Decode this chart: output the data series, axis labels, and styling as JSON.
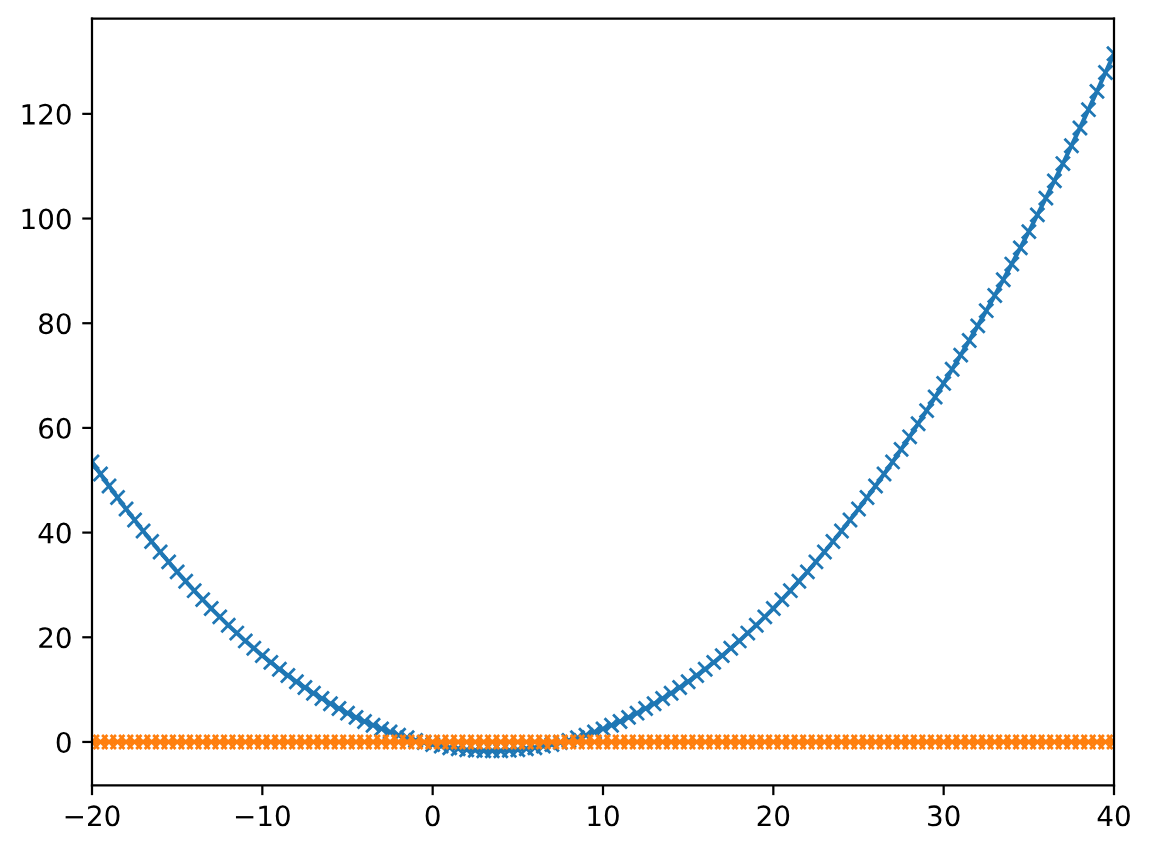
{
  "chart_data": {
    "type": "line",
    "series": [
      {
        "color": "#1f77b4",
        "x": [
          -20,
          -19.5,
          -19,
          -18.5,
          -18,
          -17.5,
          -17,
          -16.5,
          -16,
          -15.5,
          -15,
          -14.5,
          -14,
          -13.5,
          -13,
          -12.5,
          -12,
          -11.5,
          -11,
          -10.5,
          -10,
          -9.5,
          -9,
          -8.5,
          -8,
          -7.5,
          -7,
          -6.5,
          -6,
          -5.5,
          -5,
          -4.5,
          -4,
          -3.5,
          -3,
          -2.5,
          -2,
          -1.5,
          -1,
          -0.5,
          0,
          0.5,
          1,
          1.5,
          2,
          2.5,
          3,
          3.5,
          4,
          4.5,
          5,
          5.5,
          6,
          6.5,
          7,
          7.5,
          8,
          8.5,
          9,
          9.5,
          10,
          10.5,
          11,
          11.5,
          12,
          12.5,
          13,
          13.5,
          14,
          14.5,
          15,
          15.5,
          16,
          16.5,
          17,
          17.5,
          18,
          18.5,
          19,
          19.5,
          20,
          20.5,
          21,
          21.5,
          22,
          22.5,
          23,
          23.5,
          24,
          24.5,
          25,
          25.5,
          26,
          26.5,
          27,
          27.5,
          28,
          28.5,
          29,
          29.5,
          30,
          30.5,
          31,
          31.5,
          32,
          32.5,
          33,
          33.5,
          34,
          34.5,
          35,
          35.5,
          36,
          36.5,
          37,
          37.5,
          38,
          38.5,
          39,
          39.5,
          40
        ],
        "values": [
          53.5,
          51.2,
          48.9,
          46.7,
          44.5,
          42.4,
          40.3,
          38.3,
          36.3,
          34.4,
          32.5,
          30.7,
          28.9,
          27.2,
          25.5,
          23.9,
          22.3,
          20.8,
          19.3,
          17.9,
          16.5,
          15.2,
          13.9,
          12.7,
          11.5,
          10.4,
          9.3,
          8.3,
          7.3,
          6.4,
          5.5,
          4.7,
          3.9,
          3.2,
          2.5,
          1.9,
          1.3,
          0.8,
          0.3,
          -0.1,
          -0.5,
          -0.8,
          -1.1,
          -1.3,
          -1.5,
          -1.6,
          -1.7,
          -1.7,
          -1.7,
          -1.6,
          -1.5,
          -1.3,
          -1.1,
          -0.8,
          -0.5,
          -0.1,
          0.3,
          0.8,
          1.3,
          1.9,
          2.5,
          3.2,
          3.9,
          4.7,
          5.5,
          6.4,
          7.3,
          8.3,
          9.3,
          10.4,
          11.5,
          12.7,
          13.9,
          15.2,
          16.5,
          17.9,
          19.3,
          20.8,
          22.3,
          23.9,
          25.5,
          27.2,
          28.9,
          30.7,
          32.5,
          34.4,
          36.3,
          38.3,
          40.3,
          42.4,
          44.5,
          46.7,
          48.9,
          51.2,
          53.5,
          55.9,
          58.3,
          60.8,
          63.3,
          65.9,
          68.5,
          71.2,
          73.9,
          76.7,
          79.5,
          82.4,
          85.3,
          88.3,
          91.3,
          94.4,
          97.5,
          100.7,
          103.9,
          107.2,
          110.5,
          113.9,
          117.3,
          120.8,
          124.3,
          127.9,
          131.5
        ]
      },
      {
        "color": "#ff7f0e",
        "x": [
          -20,
          -19.5,
          -19,
          -18.5,
          -18,
          -17.5,
          -17,
          -16.5,
          -16,
          -15.5,
          -15,
          -14.5,
          -14,
          -13.5,
          -13,
          -12.5,
          -12,
          -11.5,
          -11,
          -10.5,
          -10,
          -9.5,
          -9,
          -8.5,
          -8,
          -7.5,
          -7,
          -6.5,
          -6,
          -5.5,
          -5,
          -4.5,
          -4,
          -3.5,
          -3,
          -2.5,
          -2,
          -1.5,
          -1,
          -0.5,
          0,
          0.5,
          1,
          1.5,
          2,
          2.5,
          3,
          3.5,
          4,
          4.5,
          5,
          5.5,
          6,
          6.5,
          7,
          7.5,
          8,
          8.5,
          9,
          9.5,
          10,
          10.5,
          11,
          11.5,
          12,
          12.5,
          13,
          13.5,
          14,
          14.5,
          15,
          15.5,
          16,
          16.5,
          17,
          17.5,
          18,
          18.5,
          19,
          19.5,
          20,
          20.5,
          21,
          21.5,
          22,
          22.5,
          23,
          23.5,
          24,
          24.5,
          25,
          25.5,
          26,
          26.5,
          27,
          27.5,
          28,
          28.5,
          29,
          29.5,
          30,
          30.5,
          31,
          31.5,
          32,
          32.5,
          33,
          33.5,
          34,
          34.5,
          35,
          35.5,
          36,
          36.5,
          37,
          37.5,
          38,
          38.5,
          39,
          39.5,
          40
        ],
        "values": [
          0,
          0,
          0,
          0,
          0,
          0,
          0,
          0,
          0,
          0,
          0,
          0,
          0,
          0,
          0,
          0,
          0,
          0,
          0,
          0,
          0,
          0,
          0,
          0,
          0,
          0,
          0,
          0,
          0,
          0,
          0,
          0,
          0,
          0,
          0,
          0,
          0,
          0,
          0,
          0,
          0,
          0,
          0,
          0,
          0,
          0,
          0,
          0,
          0,
          0,
          0,
          0,
          0,
          0,
          0,
          0,
          0,
          0,
          0,
          0,
          0,
          0,
          0,
          0,
          0,
          0,
          0,
          0,
          0,
          0,
          0,
          0,
          0,
          0,
          0,
          0,
          0,
          0,
          0,
          0,
          0,
          0,
          0,
          0,
          0,
          0,
          0,
          0,
          0,
          0,
          0,
          0,
          0,
          0,
          0,
          0,
          0,
          0,
          0,
          0,
          0,
          0,
          0,
          0,
          0,
          0,
          0,
          0,
          0,
          0,
          0,
          0,
          0,
          0,
          0,
          0,
          0,
          0,
          0,
          0,
          0
        ]
      }
    ],
    "xlim": [
      -20,
      40
    ],
    "xticks": [
      {
        "value": -20,
        "label": "−20"
      },
      {
        "value": -10,
        "label": "−10"
      },
      0,
      10,
      20,
      30,
      40
    ],
    "ylim": [
      -8.3,
      138.2
    ],
    "yticks": [
      0,
      20,
      40,
      60,
      80,
      100,
      120
    ],
    "marker": "cross",
    "line_style": "solid"
  }
}
